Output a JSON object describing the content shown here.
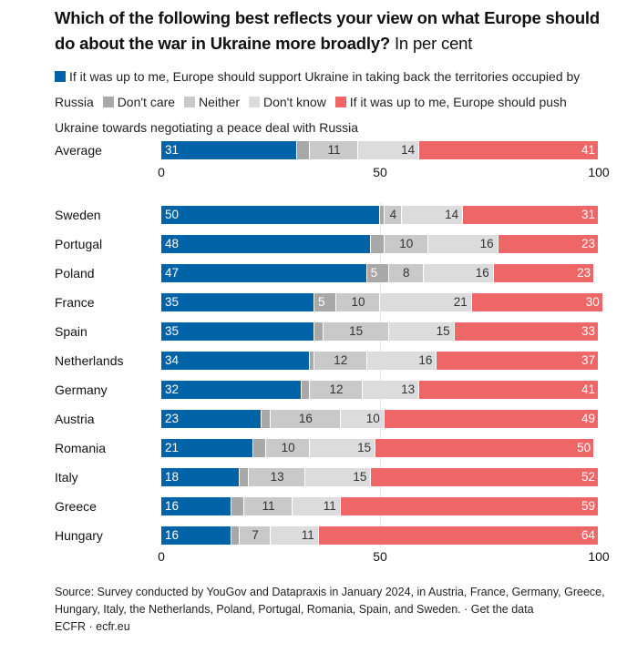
{
  "title": "Which of the following best reflects your view on what Europe should do about the war in Ukraine more broadly?",
  "subtitle": "In per cent",
  "legend": [
    {
      "label": "If it was up to me, Europe should support Ukraine in taking back the territories occupied by Russia",
      "color": "#0063a8"
    },
    {
      "label": "Don't care",
      "color": "#a8a8a8"
    },
    {
      "label": "Neither",
      "color": "#c9c9c9"
    },
    {
      "label": "Don't know",
      "color": "#dcdcdc"
    },
    {
      "label": "If it was up to me, Europe should push Ukraine towards negotiating a peace deal with Russia",
      "color": "#ef6666"
    }
  ],
  "source": "Source: Survey conducted by YouGov and Datapraxis in January 2024, in Austria, France, Germany, Greece, Hungary, Italy, the Netherlands, Poland, Portugal, Romania, Spain, and Sweden. · Get the data",
  "credit": "ECFR · ecfr.eu",
  "chart_data": {
    "type": "bar",
    "orientation": "horizontal",
    "stacked": true,
    "title": "Which of the following best reflects your view on what Europe should do about the war in Ukraine more broadly? In per cent",
    "xlim": [
      0,
      100
    ],
    "xticks": [
      "0",
      "50",
      "100"
    ],
    "series_names": [
      "Support Ukraine taking back territories",
      "Don't care",
      "Neither",
      "Don't know",
      "Push Ukraine towards peace deal"
    ],
    "series_colors": [
      "#0063a8",
      "#a8a8a8",
      "#c9c9c9",
      "#dcdcdc",
      "#ef6666"
    ],
    "average": {
      "name": "Average",
      "values": [
        31,
        3,
        11,
        14,
        41
      ],
      "labels": [
        "31",
        "",
        "11",
        "14",
        "41"
      ]
    },
    "rows": [
      {
        "name": "Sweden",
        "values": [
          50,
          1,
          4,
          14,
          31
        ],
        "labels": [
          "50",
          "",
          "4",
          "14",
          "31"
        ]
      },
      {
        "name": "Portugal",
        "values": [
          48,
          3,
          10,
          16,
          23
        ],
        "labels": [
          "48",
          "",
          "10",
          "16",
          "23"
        ]
      },
      {
        "name": "Poland",
        "values": [
          47,
          5,
          8,
          16,
          23
        ],
        "labels": [
          "47",
          "5",
          "8",
          "16",
          "23"
        ]
      },
      {
        "name": "France",
        "values": [
          35,
          5,
          10,
          21,
          30
        ],
        "labels": [
          "35",
          "5",
          "10",
          "21",
          "30"
        ]
      },
      {
        "name": "Spain",
        "values": [
          35,
          2,
          15,
          15,
          33
        ],
        "labels": [
          "35",
          "",
          "15",
          "15",
          "33"
        ]
      },
      {
        "name": "Netherlands",
        "values": [
          34,
          1,
          12,
          16,
          37
        ],
        "labels": [
          "34",
          "",
          "12",
          "16",
          "37"
        ]
      },
      {
        "name": "Germany",
        "values": [
          32,
          2,
          12,
          13,
          41
        ],
        "labels": [
          "32",
          "",
          "12",
          "13",
          "41"
        ]
      },
      {
        "name": "Austria",
        "values": [
          23,
          2,
          16,
          10,
          49
        ],
        "labels": [
          "23",
          "",
          "16",
          "10",
          "49"
        ]
      },
      {
        "name": "Romania",
        "values": [
          21,
          3,
          10,
          15,
          50
        ],
        "labels": [
          "21",
          "",
          "10",
          "15",
          "50"
        ]
      },
      {
        "name": "Italy",
        "values": [
          18,
          2,
          13,
          15,
          52
        ],
        "labels": [
          "18",
          "",
          "13",
          "15",
          "52"
        ]
      },
      {
        "name": "Greece",
        "values": [
          16,
          3,
          11,
          11,
          59
        ],
        "labels": [
          "16",
          "",
          "11",
          "11",
          "59"
        ]
      },
      {
        "name": "Hungary",
        "values": [
          16,
          2,
          7,
          11,
          64
        ],
        "labels": [
          "16",
          "",
          "7",
          "11",
          "64"
        ]
      }
    ]
  }
}
